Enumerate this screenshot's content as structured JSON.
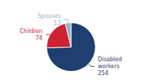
{
  "chart_data": {
    "type": "pie",
    "categories": [
      "Disabled\nworkers",
      "Children",
      "Spouses"
    ],
    "values": [
      254,
      74,
      13
    ],
    "colors": [
      "#1e3f6f",
      "#cc2233",
      "#9bafc0"
    ],
    "data_labels": true
  }
}
